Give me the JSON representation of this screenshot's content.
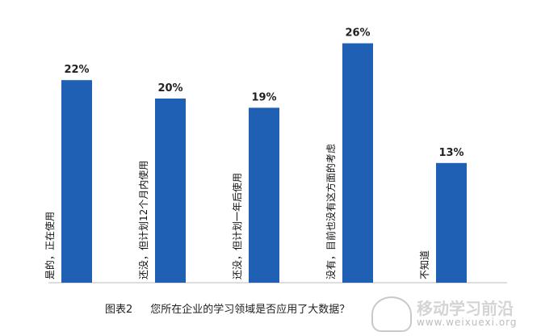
{
  "chart_data": {
    "type": "bar",
    "categories": [
      "是的，正在使用",
      "还没，但计划12个月内使用",
      "还没，但计划一年后使用",
      "没有，目前也没有这方面的考虑",
      "不知道"
    ],
    "values": [
      22,
      20,
      19,
      26,
      13
    ],
    "value_labels": [
      "22%",
      "20%",
      "19%",
      "26%",
      "13%"
    ],
    "ylim": [
      0,
      30
    ],
    "grid": false,
    "bar_color": "#1f5fb4"
  },
  "caption": {
    "label": "图表2",
    "text": "您所在企业的学习领域是否应用了大数据？"
  },
  "watermark": {
    "title": "移动学习前沿",
    "url": "www.weixuexi.org"
  }
}
